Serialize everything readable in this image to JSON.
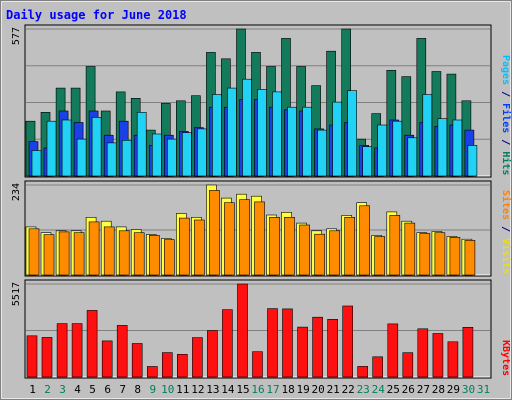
{
  "chart_data": {
    "type": "bar",
    "title": "Daily usage for June 2018",
    "days": [
      "1",
      "2",
      "3",
      "4",
      "5",
      "6",
      "7",
      "8",
      "9",
      "10",
      "11",
      "12",
      "13",
      "14",
      "15",
      "16",
      "17",
      "18",
      "19",
      "20",
      "21",
      "22",
      "23",
      "24",
      "25",
      "26",
      "27",
      "28",
      "29",
      "30",
      "31"
    ],
    "weekend_days": [
      2,
      3,
      9,
      10,
      16,
      17,
      23,
      24,
      30,
      31
    ],
    "panels": [
      {
        "key": "hits",
        "ymax_label": "577",
        "ymax": 577,
        "ylabel_parts": [
          {
            "text": "Pages",
            "color": "#00c0ff"
          },
          {
            "text": " / ",
            "color": "#000080"
          },
          {
            "text": "Files",
            "color": "#0040ff"
          },
          {
            "text": " / ",
            "color": "#000080"
          },
          {
            "text": "Hits",
            "color": "#008060"
          }
        ],
        "series": [
          {
            "name": "Hits",
            "color": "#137a5c",
            "values": [
              215,
              250,
              345,
              345,
              430,
              255,
              330,
              305,
              180,
              285,
              295,
              315,
              485,
              460,
              577,
              485,
              430,
              540,
              430,
              355,
              490,
              577,
              145,
              245,
              415,
              390,
              540,
              410,
              400,
              295,
              0
            ]
          },
          {
            "name": "Files",
            "color": "#1a40e8",
            "values": [
              135,
              110,
              255,
              210,
              255,
              160,
              215,
              160,
              120,
              160,
              175,
              190,
              270,
              270,
              300,
              300,
              270,
              260,
              255,
              185,
              200,
              210,
              120,
              110,
              220,
              160,
              210,
              195,
              200,
              180,
              0
            ]
          },
          {
            "name": "Pages",
            "color": "#22d2f4",
            "values": [
              100,
              215,
              220,
              145,
              230,
              130,
              140,
              250,
              165,
              145,
              170,
              185,
              320,
              345,
              380,
              340,
              330,
              270,
              270,
              180,
              290,
              335,
              115,
              200,
              215,
              150,
              320,
              225,
              220,
              120,
              0
            ]
          }
        ]
      },
      {
        "key": "visits",
        "ymax_label": "234",
        "ymax": 234,
        "ylabel_parts": [
          {
            "text": "Sites",
            "color": "#ff8000"
          },
          {
            "text": " / ",
            "color": "#000080"
          },
          {
            "text": "Visits",
            "color": "#f0e000"
          }
        ],
        "series": [
          {
            "name": "Visits",
            "color": "#ffff40",
            "values": [
              125,
              110,
              115,
              115,
              150,
              140,
              125,
              118,
              105,
              95,
              160,
              150,
              234,
              200,
              210,
              205,
              156,
              163,
              135,
              115,
              120,
              155,
              188,
              103,
              164,
              140,
              110,
              113,
              100,
              93,
              0
            ]
          },
          {
            "name": "Sites",
            "color": "#ff8c00",
            "values": [
              120,
              105,
              112,
              110,
              138,
              125,
              115,
              110,
              103,
              92,
              148,
              143,
              220,
              188,
              196,
              190,
              150,
              150,
              130,
              106,
              115,
              150,
              180,
              100,
              155,
              135,
              108,
              110,
              98,
              90,
              0
            ]
          }
        ]
      },
      {
        "key": "kbytes",
        "ymax_label": "5517",
        "ymax": 5517,
        "ylabel_parts": [
          {
            "text": "KBytes",
            "color": "#ff0000"
          }
        ],
        "series": [
          {
            "name": "KBytes",
            "color": "#ff1010",
            "values": [
              2445,
              2350,
              3170,
              3170,
              3950,
              2140,
              3060,
              1990,
              620,
              1450,
              1345,
              2335,
              2760,
              3990,
              5517,
              1500,
              4055,
              4040,
              2960,
              3550,
              3420,
              4210,
              630,
              1200,
              3150,
              1440,
              2860,
              2580,
              2090,
              2950,
              0
            ]
          }
        ]
      }
    ]
  }
}
